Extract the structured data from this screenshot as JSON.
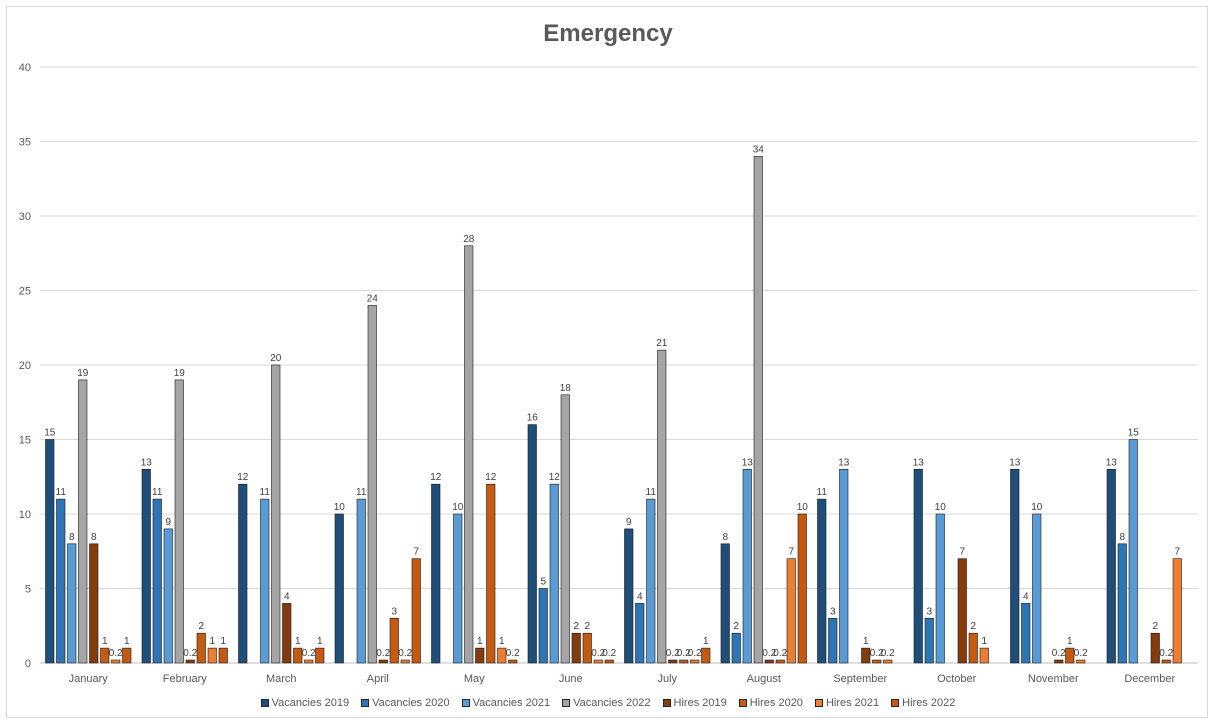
{
  "chart_data": {
    "type": "bar",
    "title": "Emergency",
    "xlabel": "",
    "ylabel": "",
    "ylim": [
      0,
      40
    ],
    "yticks": [
      0,
      5,
      10,
      15,
      20,
      25,
      30,
      35,
      40
    ],
    "grid": true,
    "legend_position": "bottom",
    "categories": [
      "January",
      "February",
      "March",
      "April",
      "May",
      "June",
      "July",
      "August",
      "September",
      "October",
      "November",
      "December"
    ],
    "series": [
      {
        "name": "Vacancies 2019",
        "color": "#1f4e79",
        "values": [
          15,
          13,
          12,
          10,
          12,
          16,
          9,
          8,
          11,
          13,
          13,
          13
        ]
      },
      {
        "name": "Vacancies 2020",
        "color": "#2e75b6",
        "values": [
          11,
          11,
          null,
          null,
          null,
          5,
          4,
          2,
          3,
          3,
          4,
          8
        ]
      },
      {
        "name": "Vacancies 2021",
        "color": "#5b9bd5",
        "values": [
          8,
          9,
          11,
          11,
          10,
          12,
          11,
          13,
          13,
          10,
          10,
          15
        ]
      },
      {
        "name": "Vacancies 2022",
        "color": "#a5a5a5",
        "values": [
          19,
          19,
          20,
          24,
          28,
          18,
          21,
          34,
          null,
          null,
          null,
          null
        ]
      },
      {
        "name": "Hires 2019",
        "color": "#843c0c",
        "values": [
          8,
          0.2,
          4,
          0.2,
          1,
          2,
          0.2,
          0.2,
          1,
          7,
          0.2,
          2
        ]
      },
      {
        "name": "Hires 2020",
        "color": "#c55a11",
        "values": [
          1,
          2,
          1,
          3,
          12,
          2,
          0.2,
          0.2,
          0.2,
          2,
          1,
          0.2
        ]
      },
      {
        "name": "Hires 2021",
        "color": "#ed7d31",
        "values": [
          0.2,
          1,
          0.2,
          0.2,
          1,
          0.2,
          0.2,
          7,
          0.2,
          1,
          0.2,
          7
        ]
      },
      {
        "name": "Hires 2022",
        "color": "#c65911",
        "values": [
          1,
          1,
          1,
          7,
          0.2,
          0.2,
          1,
          10,
          null,
          null,
          null,
          null
        ]
      }
    ]
  }
}
